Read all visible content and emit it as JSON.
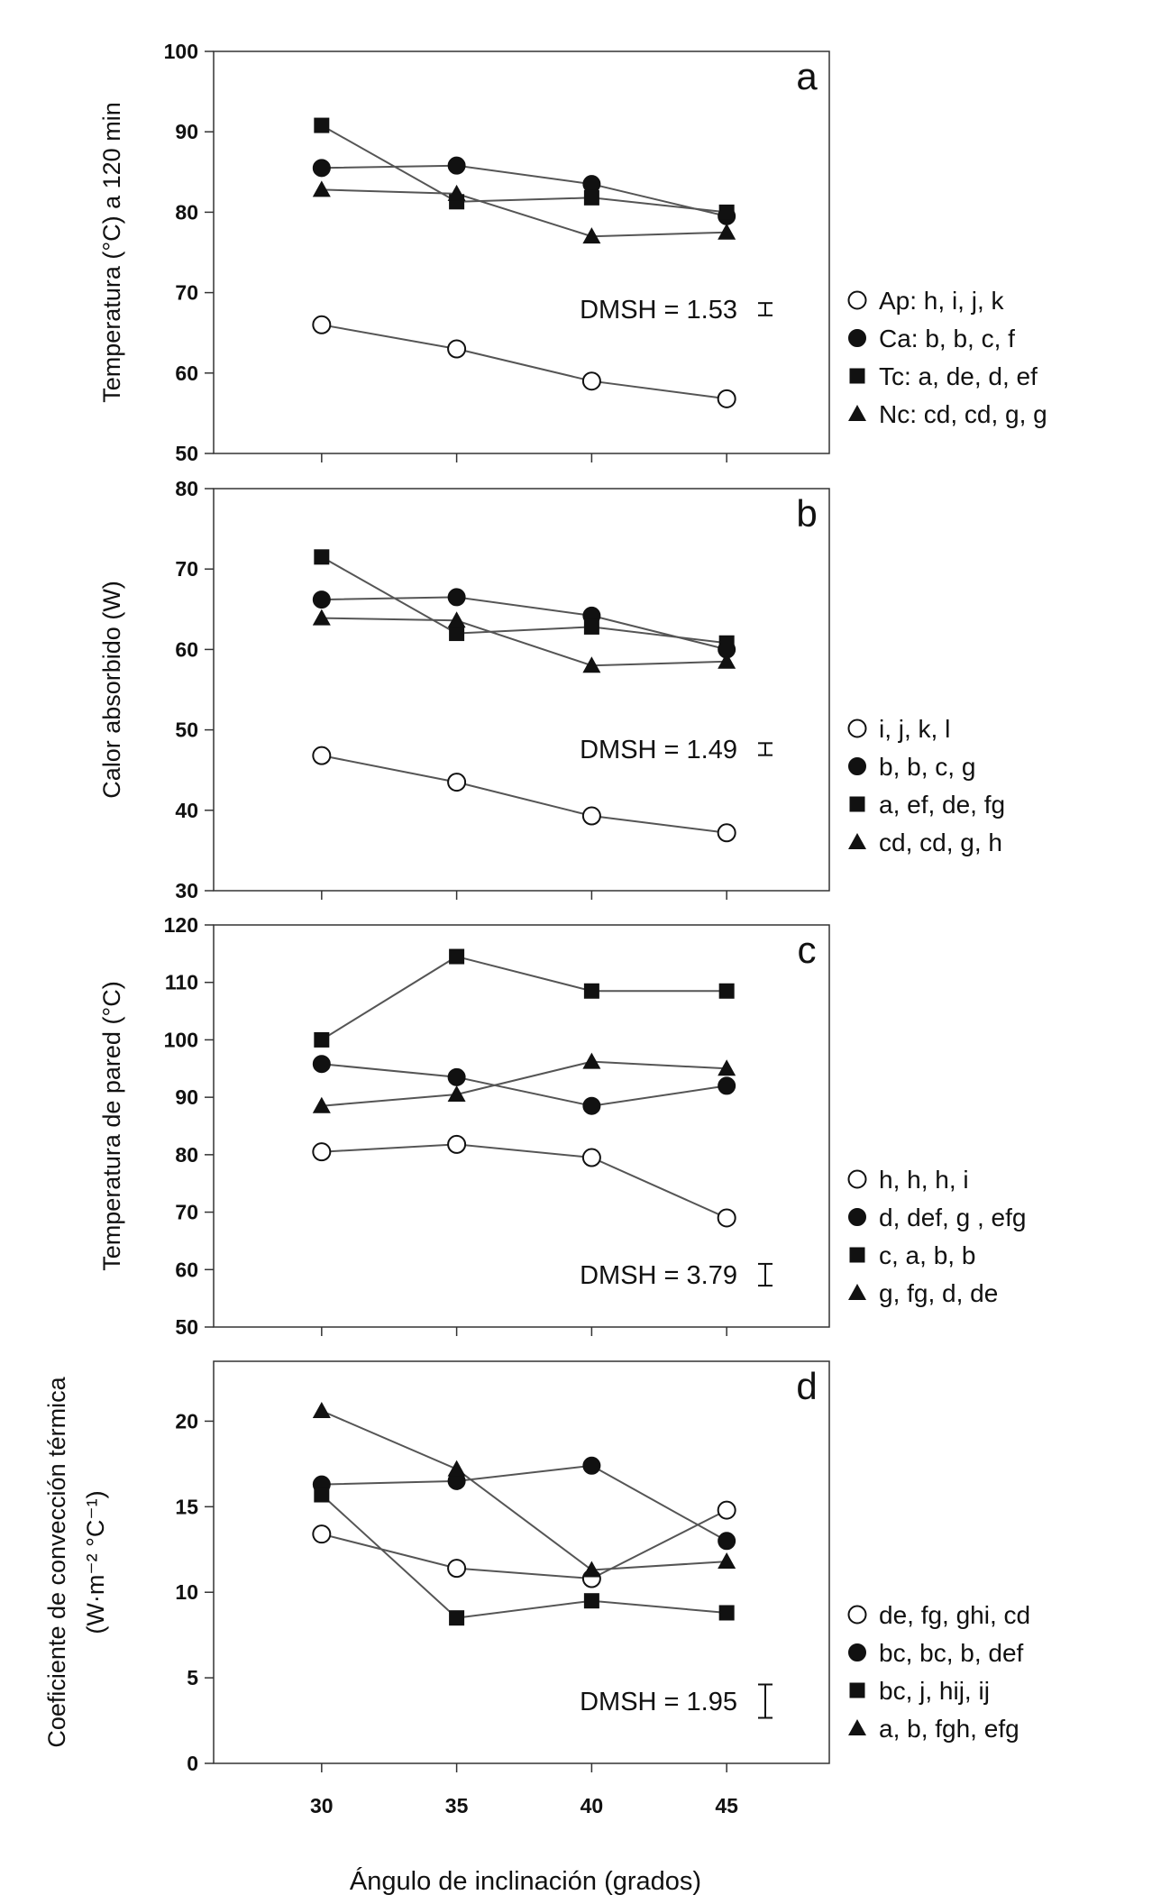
{
  "chart_data": [
    {
      "type": "line",
      "panel_letter": "a",
      "ylabel": "Temperatura (°C) a 120 min",
      "ylabel2": "",
      "x": [
        30,
        35,
        40,
        45
      ],
      "ylim": [
        50,
        100
      ],
      "yticks": [
        50,
        60,
        70,
        80,
        90,
        100
      ],
      "dmsh": "DMSH = 1.53",
      "dmsh_value": 1.53,
      "series": [
        {
          "name": "Ap",
          "marker": "open-circle",
          "values": [
            66,
            63,
            59,
            56.8
          ],
          "legend": "Ap: h, i, j, k"
        },
        {
          "name": "Ca",
          "marker": "filled-circle",
          "values": [
            85.5,
            85.8,
            83.5,
            79.5
          ],
          "legend": "Ca: b, b, c, f"
        },
        {
          "name": "Tc",
          "marker": "square",
          "values": [
            90.8,
            81.3,
            81.8,
            80
          ],
          "legend": "Tc: a, de, d, ef"
        },
        {
          "name": "Nc",
          "marker": "triangle",
          "values": [
            82.8,
            82.3,
            77,
            77.5
          ],
          "legend": "Nc: cd, cd, g, g"
        }
      ]
    },
    {
      "type": "line",
      "panel_letter": "b",
      "ylabel": "Calor absorbido (W)",
      "ylabel2": "",
      "x": [
        30,
        35,
        40,
        45
      ],
      "ylim": [
        30,
        80
      ],
      "yticks": [
        30,
        40,
        50,
        60,
        70,
        80
      ],
      "dmsh": "DMSH = 1.49",
      "dmsh_value": 1.49,
      "series": [
        {
          "name": "Ap",
          "marker": "open-circle",
          "values": [
            46.8,
            43.5,
            39.3,
            37.2
          ],
          "legend": "i, j, k, l"
        },
        {
          "name": "Ca",
          "marker": "filled-circle",
          "values": [
            66.2,
            66.5,
            64.2,
            60
          ],
          "legend": "b, b, c, g"
        },
        {
          "name": "Tc",
          "marker": "square",
          "values": [
            71.5,
            62,
            62.8,
            60.8
          ],
          "legend": "a, ef, de, fg"
        },
        {
          "name": "Nc",
          "marker": "triangle",
          "values": [
            63.9,
            63.6,
            58,
            58.5
          ],
          "legend": "cd, cd, g, h"
        }
      ]
    },
    {
      "type": "line",
      "panel_letter": "c",
      "ylabel": "Temperatura de pared (°C)",
      "ylabel2": "",
      "x": [
        30,
        35,
        40,
        45
      ],
      "ylim": [
        50,
        120
      ],
      "yticks": [
        50,
        60,
        70,
        80,
        90,
        100,
        110,
        120
      ],
      "dmsh": "DMSH = 3.79",
      "dmsh_value": 3.79,
      "series": [
        {
          "name": "Ap",
          "marker": "open-circle",
          "values": [
            80.5,
            81.8,
            79.5,
            69
          ],
          "legend": "h, h, h, i"
        },
        {
          "name": "Ca",
          "marker": "filled-circle",
          "values": [
            95.8,
            93.5,
            88.5,
            92
          ],
          "legend": "d, def, g , efg"
        },
        {
          "name": "Tc",
          "marker": "square",
          "values": [
            100,
            114.5,
            108.5,
            108.5
          ],
          "legend": "c, a, b, b"
        },
        {
          "name": "Nc",
          "marker": "triangle",
          "values": [
            88.5,
            90.5,
            96.2,
            95
          ],
          "legend": "g, fg, d, de"
        }
      ]
    },
    {
      "type": "line",
      "panel_letter": "d",
      "ylabel": "Coeficiente de convección térmica",
      "ylabel2": "(W·m⁻² °C⁻¹)",
      "x": [
        30,
        35,
        40,
        45
      ],
      "xticks": [
        "30",
        "35",
        "40",
        "45"
      ],
      "ylim": [
        0,
        23.5
      ],
      "yticks": [
        0,
        5,
        10,
        15,
        20
      ],
      "dmsh": "DMSH = 1.95",
      "dmsh_value": 1.95,
      "series": [
        {
          "name": "Ap",
          "marker": "open-circle",
          "values": [
            13.4,
            11.4,
            10.8,
            14.8
          ],
          "legend": "de, fg, ghi, cd"
        },
        {
          "name": "Ca",
          "marker": "filled-circle",
          "values": [
            16.3,
            16.5,
            17.4,
            13
          ],
          "legend": "bc, bc, b, def"
        },
        {
          "name": "Tc",
          "marker": "square",
          "values": [
            15.7,
            8.5,
            9.5,
            8.8
          ],
          "legend": "bc, j, hij, ij"
        },
        {
          "name": "Nc",
          "marker": "triangle",
          "values": [
            20.6,
            17.2,
            11.3,
            11.8
          ],
          "legend": "a, b, fgh, efg"
        }
      ]
    }
  ],
  "xlabel": "Ángulo de inclinación (grados)",
  "colors": {
    "line": "#555555",
    "marker": "#111111",
    "axis": "#333333",
    "open_fill": "#ffffff"
  }
}
